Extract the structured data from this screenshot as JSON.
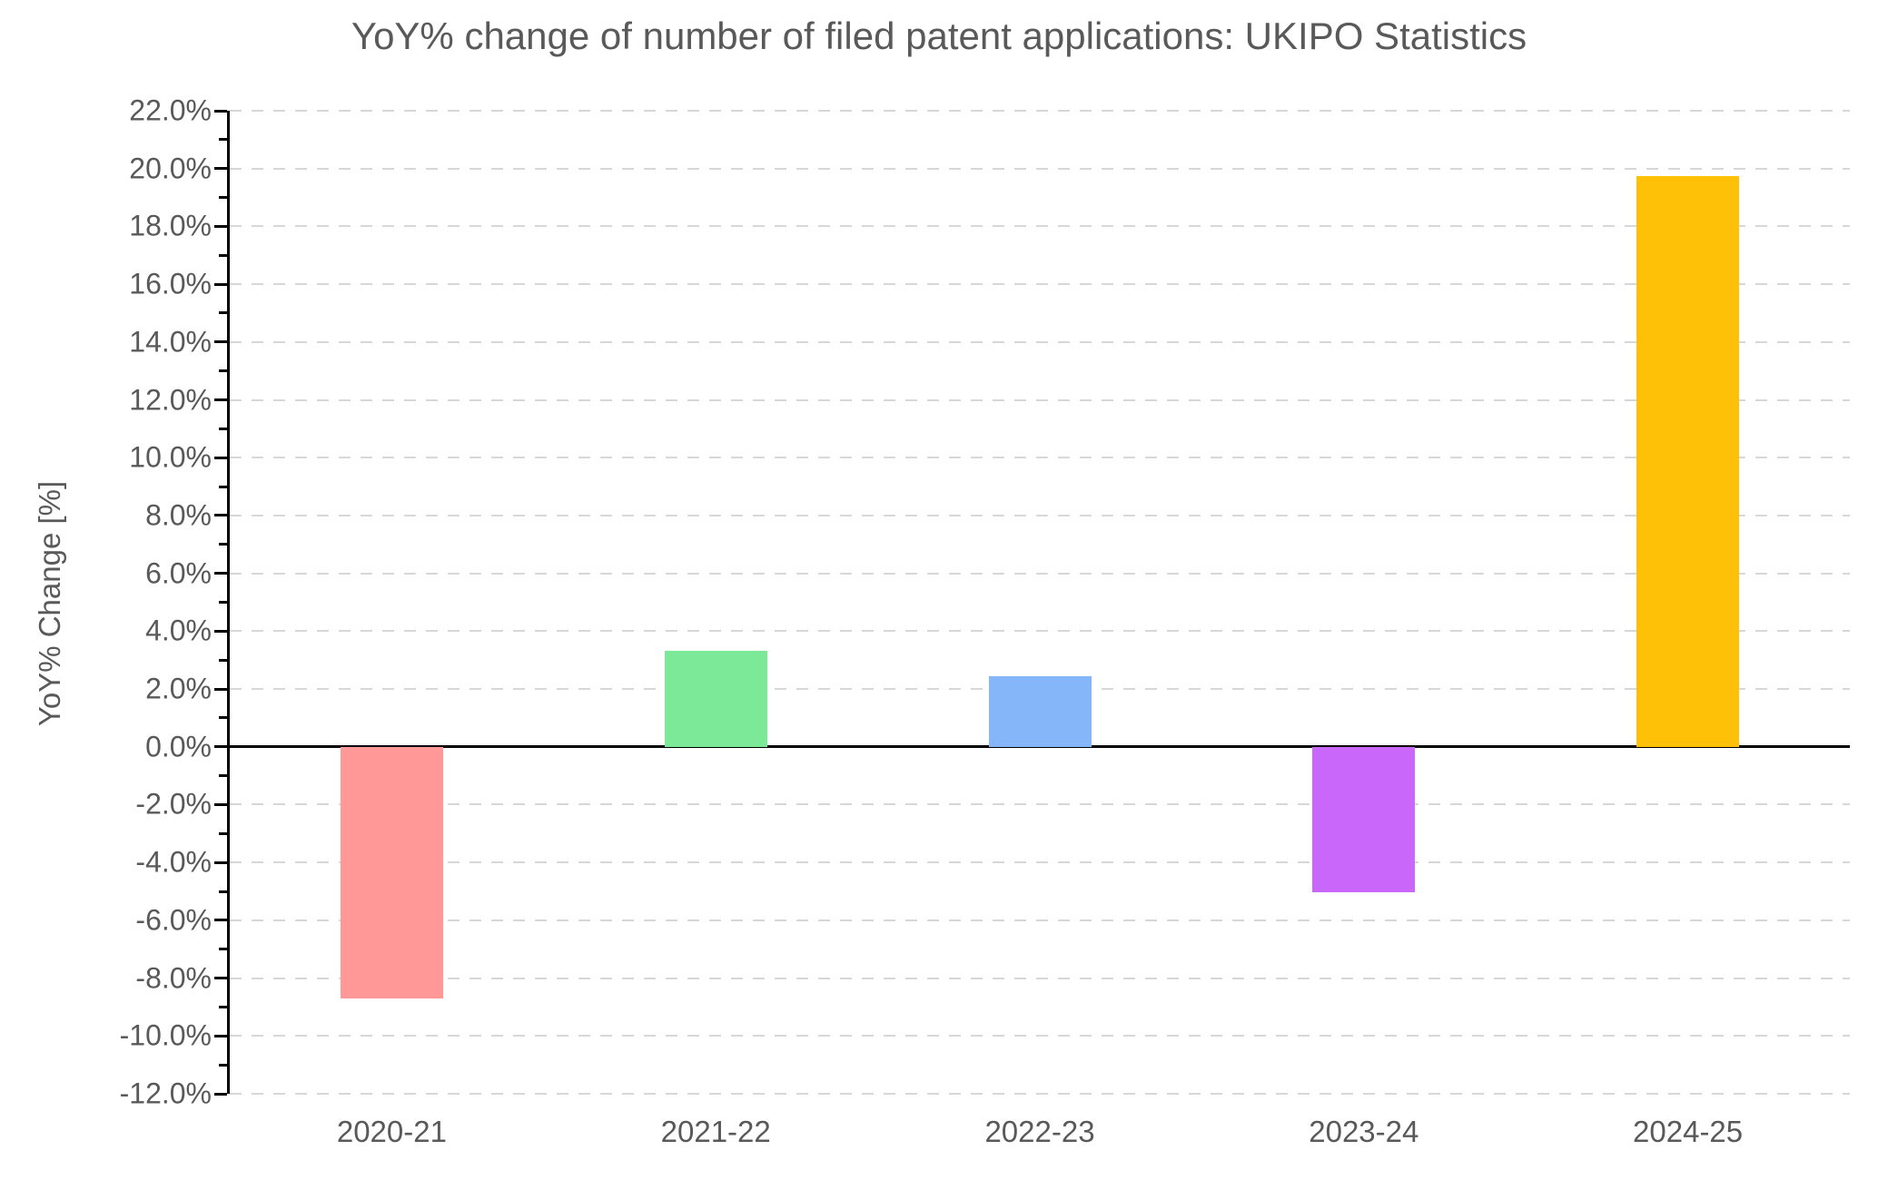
{
  "chart_data": {
    "type": "bar",
    "title": "YoY% change of number of filed patent applications: UKIPO Statistics",
    "xlabel": "",
    "ylabel": "YoY% Change [%]",
    "categories": [
      "2020-21",
      "2021-22",
      "2022-23",
      "2023-24",
      "2024-25"
    ],
    "values": [
      -8.7,
      3.33,
      2.45,
      -5.03,
      19.75
    ],
    "bar_colors": [
      "#ff9896",
      "#7ce998",
      "#85b6fa",
      "#c967fa",
      "#ffc107"
    ],
    "ylim": [
      -12,
      22
    ],
    "ytick_values": [
      22,
      20,
      18,
      16,
      14,
      12,
      10,
      8,
      6,
      4,
      2,
      0,
      -2,
      -4,
      -6,
      -8,
      -10,
      -12
    ],
    "ytick_labels": [
      "22.0%",
      "20.0%",
      "18.0%",
      "16.0%",
      "14.0%",
      "12.0%",
      "10.0%",
      "8.0%",
      "6.0%",
      "4.0%",
      "2.0%",
      "0.0%",
      "-2.0%",
      "-4.0%",
      "-6.0%",
      "-8.0%",
      "-10.0%",
      "-12.0%"
    ],
    "minor_tick_step": 1,
    "grid": "horizontal-dashed",
    "legend": "none",
    "colors": {
      "text": "#595959",
      "grid": "#d7d7d7",
      "axis": "#000000",
      "background": "#ffffff"
    }
  }
}
